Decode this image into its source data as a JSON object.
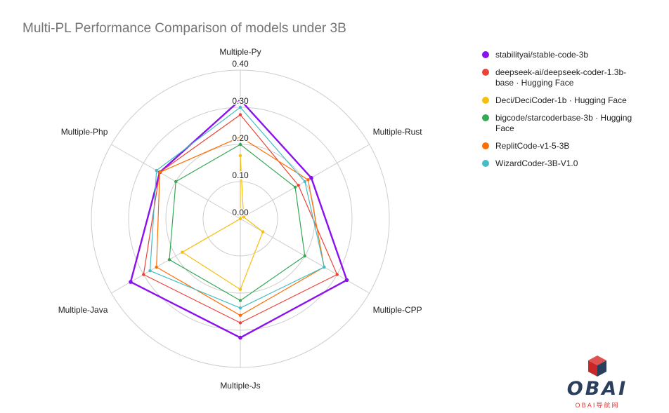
{
  "chart_data": {
    "type": "radar",
    "title": "Multi-PL Performance Comparison of models under 3B",
    "axes": [
      "Multiple-Py",
      "Multiple-Rust",
      "Multiple-CPP",
      "Multiple-Js",
      "Multiple-Java",
      "Multiple-Php"
    ],
    "rlim": [
      0,
      0.4
    ],
    "tick_values": [
      0,
      0.1,
      0.2,
      0.3,
      0.4
    ],
    "tick_labels": [
      "0.00",
      "0.10",
      "0.20",
      "0.30",
      "0.40"
    ],
    "grid": true,
    "legend_position": "right",
    "series": [
      {
        "name": "stabilityai/stable-code-3b",
        "color": "#8b10f0",
        "values": [
          0.32,
          0.22,
          0.33,
          0.32,
          0.34,
          0.25
        ]
      },
      {
        "name": "deepseek-ai/deepseek-coder-1.3b-base · Hugging Face",
        "color": "#ea4335",
        "values": [
          0.28,
          0.18,
          0.3,
          0.28,
          0.3,
          0.25
        ]
      },
      {
        "name": "Deci/DeciCoder-1b · Hugging Face",
        "color": "#f6bf0d",
        "values": [
          0.17,
          0.01,
          0.07,
          0.19,
          0.18,
          0.0
        ]
      },
      {
        "name": "bigcode/starcoderbase-3b · Hugging Face",
        "color": "#34a853",
        "values": [
          0.2,
          0.17,
          0.2,
          0.22,
          0.22,
          0.2
        ]
      },
      {
        "name": "ReplitCode-v1-5-3B",
        "color": "#ff6d01",
        "values": [
          0.22,
          0.21,
          0.26,
          0.26,
          0.26,
          0.25
        ]
      },
      {
        "name": "WizardCoder-3B-V1.0",
        "color": "#46bdc6",
        "values": [
          0.3,
          0.2,
          0.26,
          0.24,
          0.28,
          0.26
        ]
      }
    ]
  },
  "logo": {
    "text": "OBAI",
    "subtitle": "OBAI导航网"
  }
}
